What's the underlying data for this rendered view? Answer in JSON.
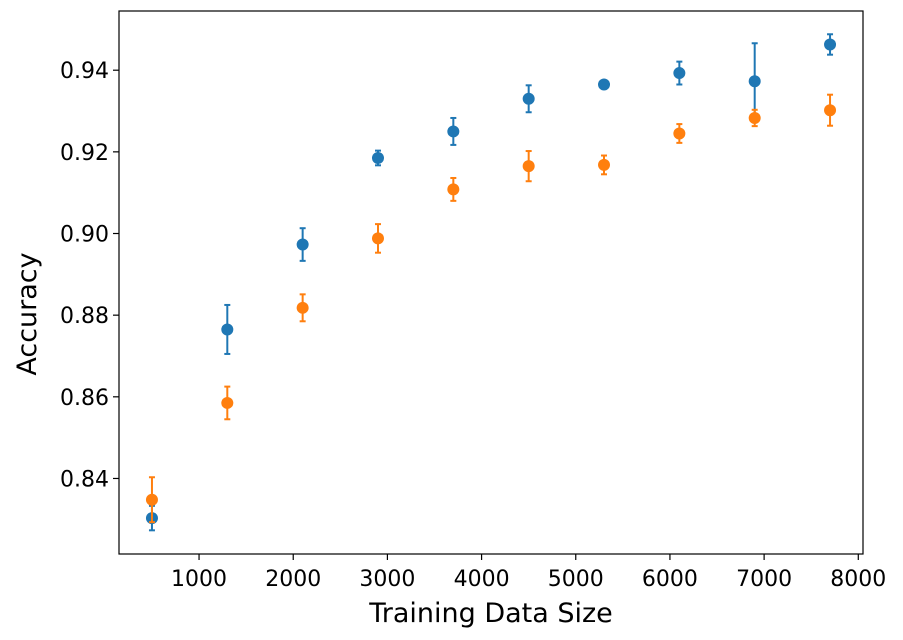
{
  "chart_data": {
    "type": "scatter",
    "title": "",
    "xlabel": "Training Data Size",
    "ylabel": "Accuracy",
    "xlim": [
      150,
      8050
    ],
    "ylim": [
      0.8215,
      0.9545
    ],
    "x_ticks": [
      1000,
      2000,
      3000,
      4000,
      5000,
      6000,
      7000,
      8000
    ],
    "x_tick_labels": [
      "1000",
      "2000",
      "3000",
      "4000",
      "5000",
      "6000",
      "7000",
      "8000"
    ],
    "y_ticks": [
      0.84,
      0.86,
      0.88,
      0.9,
      0.92,
      0.94
    ],
    "y_tick_labels": [
      "0.84",
      "0.86",
      "0.88",
      "0.90",
      "0.92",
      "0.94"
    ],
    "grid": false,
    "legend": "none",
    "series": [
      {
        "color": "#1f77b4",
        "x": [
          500,
          1300,
          2100,
          2900,
          3700,
          4500,
          5300,
          6100,
          6900,
          7700
        ],
        "y": [
          0.8303,
          0.8765,
          0.8973,
          0.9185,
          0.925,
          0.933,
          0.9365,
          0.9393,
          0.9373,
          0.9463
        ],
        "err": [
          0.003,
          0.006,
          0.004,
          0.0018,
          0.0033,
          0.0033,
          0.0005,
          0.0028,
          0.0093,
          0.0025
        ]
      },
      {
        "color": "#ff7f0e",
        "x": [
          500,
          1300,
          2100,
          2900,
          3700,
          4500,
          5300,
          6100,
          6900,
          7700
        ],
        "y": [
          0.8348,
          0.8585,
          0.8818,
          0.8988,
          0.9108,
          0.9165,
          0.9168,
          0.9245,
          0.9283,
          0.9302
        ],
        "err": [
          0.0055,
          0.004,
          0.0033,
          0.0035,
          0.0028,
          0.0037,
          0.0023,
          0.0023,
          0.002,
          0.0038
        ]
      }
    ]
  }
}
